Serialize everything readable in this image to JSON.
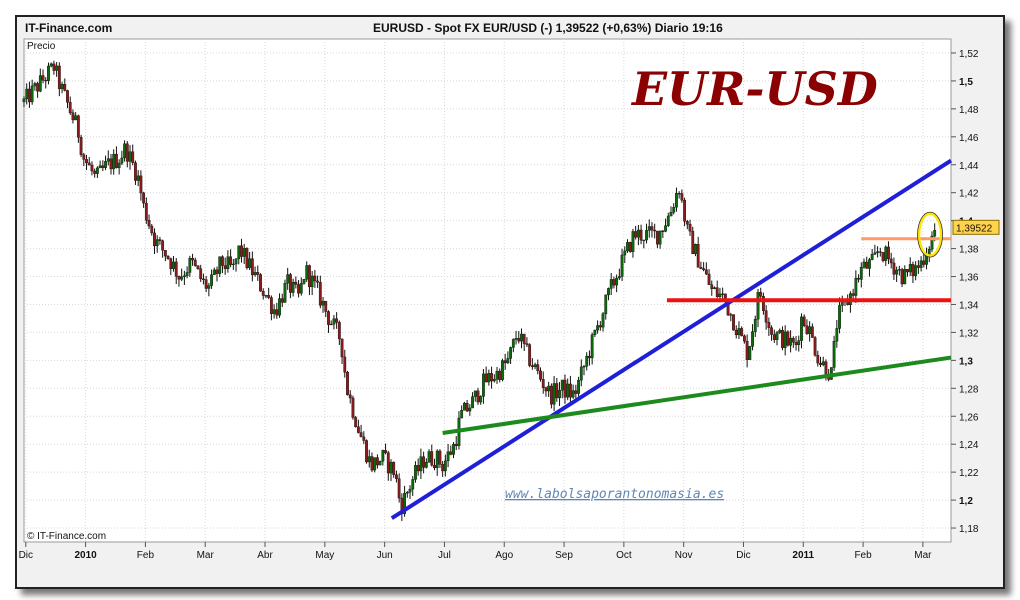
{
  "header": {
    "site": "IT-Finance.com",
    "title": "EURUSD - Spot FX EUR/USD (-)   1,39522 (+0,63%)   Diario  19:16"
  },
  "chart_data": {
    "type": "candlestick",
    "panel_label": "Precio",
    "big_label": "EUR-USD",
    "watermark": "www.labolsaporantonomasia.es",
    "copyright": "© IT-Finance.com",
    "last_value_label": "1,39522",
    "last_value": 1.39522,
    "ylim": [
      1.17,
      1.53
    ],
    "x_range_months": [
      0,
      15.5
    ],
    "y_ticks": [
      {
        "v": 1.52,
        "label": "1,52"
      },
      {
        "v": 1.5,
        "label": "1,5",
        "bold": true
      },
      {
        "v": 1.48,
        "label": "1,48"
      },
      {
        "v": 1.46,
        "label": "1,46"
      },
      {
        "v": 1.44,
        "label": "1,44"
      },
      {
        "v": 1.42,
        "label": "1,42"
      },
      {
        "v": 1.4,
        "label": "1,4",
        "bold": true
      },
      {
        "v": 1.38,
        "label": "1,38"
      },
      {
        "v": 1.36,
        "label": "1,36"
      },
      {
        "v": 1.34,
        "label": "1,34"
      },
      {
        "v": 1.32,
        "label": "1,32"
      },
      {
        "v": 1.3,
        "label": "1,3",
        "bold": true
      },
      {
        "v": 1.28,
        "label": "1,28"
      },
      {
        "v": 1.26,
        "label": "1,26"
      },
      {
        "v": 1.24,
        "label": "1,24"
      },
      {
        "v": 1.22,
        "label": "1,22"
      },
      {
        "v": 1.2,
        "label": "1,2",
        "bold": true
      },
      {
        "v": 1.18,
        "label": "1,18"
      }
    ],
    "x_ticks": [
      {
        "m": 0.03,
        "label": "Dic"
      },
      {
        "m": 1.03,
        "label": "2010",
        "bold": true
      },
      {
        "m": 2.03,
        "label": "Feb"
      },
      {
        "m": 3.03,
        "label": "Mar"
      },
      {
        "m": 4.03,
        "label": "Abr"
      },
      {
        "m": 5.03,
        "label": "May"
      },
      {
        "m": 6.03,
        "label": "Jun"
      },
      {
        "m": 7.03,
        "label": "Jul"
      },
      {
        "m": 8.03,
        "label": "Ago"
      },
      {
        "m": 9.03,
        "label": "Sep"
      },
      {
        "m": 10.03,
        "label": "Oct"
      },
      {
        "m": 11.03,
        "label": "Nov"
      },
      {
        "m": 12.03,
        "label": "Dic"
      },
      {
        "m": 13.03,
        "label": "2011",
        "bold": true
      },
      {
        "m": 14.03,
        "label": "Feb"
      },
      {
        "m": 15.03,
        "label": "Mar"
      }
    ],
    "close_path": [
      [
        0.0,
        1.485
      ],
      [
        0.3,
        1.5
      ],
      [
        0.5,
        1.51
      ],
      [
        0.6,
        1.497
      ],
      [
        0.9,
        1.465
      ],
      [
        1.0,
        1.445
      ],
      [
        1.2,
        1.43
      ],
      [
        1.4,
        1.44
      ],
      [
        1.6,
        1.445
      ],
      [
        1.7,
        1.452
      ],
      [
        1.9,
        1.432
      ],
      [
        2.0,
        1.41
      ],
      [
        2.2,
        1.385
      ],
      [
        2.4,
        1.375
      ],
      [
        2.6,
        1.36
      ],
      [
        2.8,
        1.37
      ],
      [
        3.0,
        1.355
      ],
      [
        3.1,
        1.352
      ],
      [
        3.3,
        1.37
      ],
      [
        3.5,
        1.365
      ],
      [
        3.6,
        1.38
      ],
      [
        3.8,
        1.365
      ],
      [
        4.0,
        1.35
      ],
      [
        4.2,
        1.335
      ],
      [
        4.4,
        1.355
      ],
      [
        4.6,
        1.345
      ],
      [
        4.7,
        1.365
      ],
      [
        4.9,
        1.35
      ],
      [
        5.1,
        1.33
      ],
      [
        5.3,
        1.315
      ],
      [
        5.4,
        1.28
      ],
      [
        5.6,
        1.25
      ],
      [
        5.8,
        1.225
      ],
      [
        6.0,
        1.23
      ],
      [
        6.2,
        1.22
      ],
      [
        6.3,
        1.195
      ],
      [
        6.5,
        1.215
      ],
      [
        6.7,
        1.23
      ],
      [
        6.9,
        1.23
      ],
      [
        7.0,
        1.225
      ],
      [
        7.2,
        1.24
      ],
      [
        7.3,
        1.26
      ],
      [
        7.5,
        1.27
      ],
      [
        7.7,
        1.285
      ],
      [
        7.9,
        1.29
      ],
      [
        8.1,
        1.3
      ],
      [
        8.25,
        1.32
      ],
      [
        8.4,
        1.305
      ],
      [
        8.6,
        1.29
      ],
      [
        8.8,
        1.275
      ],
      [
        9.0,
        1.28
      ],
      [
        9.2,
        1.275
      ],
      [
        9.4,
        1.3
      ],
      [
        9.6,
        1.325
      ],
      [
        9.8,
        1.35
      ],
      [
        10.0,
        1.37
      ],
      [
        10.2,
        1.39
      ],
      [
        10.4,
        1.39
      ],
      [
        10.6,
        1.39
      ],
      [
        10.8,
        1.405
      ],
      [
        10.95,
        1.425
      ],
      [
        11.1,
        1.39
      ],
      [
        11.3,
        1.37
      ],
      [
        11.5,
        1.35
      ],
      [
        11.7,
        1.345
      ],
      [
        11.9,
        1.325
      ],
      [
        12.1,
        1.305
      ],
      [
        12.3,
        1.35
      ],
      [
        12.5,
        1.32
      ],
      [
        12.7,
        1.315
      ],
      [
        12.9,
        1.31
      ],
      [
        13.0,
        1.33
      ],
      [
        13.1,
        1.325
      ],
      [
        13.3,
        1.3
      ],
      [
        13.5,
        1.29
      ],
      [
        13.6,
        1.33
      ],
      [
        13.8,
        1.345
      ],
      [
        14.0,
        1.365
      ],
      [
        14.2,
        1.37
      ],
      [
        14.3,
        1.38
      ],
      [
        14.5,
        1.37
      ],
      [
        14.7,
        1.36
      ],
      [
        14.9,
        1.365
      ],
      [
        15.0,
        1.37
      ],
      [
        15.1,
        1.38
      ],
      [
        15.2,
        1.39
      ],
      [
        15.25,
        1.39522
      ]
    ],
    "trendlines": [
      {
        "name": "blue",
        "color": "#1f1fd8",
        "points": [
          [
            6.15,
            1.187
          ],
          [
            15.5,
            1.443
          ]
        ]
      },
      {
        "name": "green",
        "color": "#1c8a1c",
        "points": [
          [
            7.0,
            1.248
          ],
          [
            15.5,
            1.302
          ]
        ]
      },
      {
        "name": "red",
        "color": "#ee1111",
        "points": [
          [
            10.75,
            1.343
          ],
          [
            15.5,
            1.343
          ]
        ]
      },
      {
        "name": "orange",
        "color": "#ff9966",
        "points": [
          [
            14.0,
            1.387
          ],
          [
            15.5,
            1.387
          ]
        ]
      }
    ],
    "highlight_circle": {
      "m": 15.15,
      "v": 1.39,
      "color": "#ffe400"
    },
    "colors": {
      "up": "#0a6a0a",
      "down": "#8b1a1a",
      "label": "#8b0000",
      "watermark": "#5f87b6",
      "price_box": "#ffd34d"
    }
  }
}
